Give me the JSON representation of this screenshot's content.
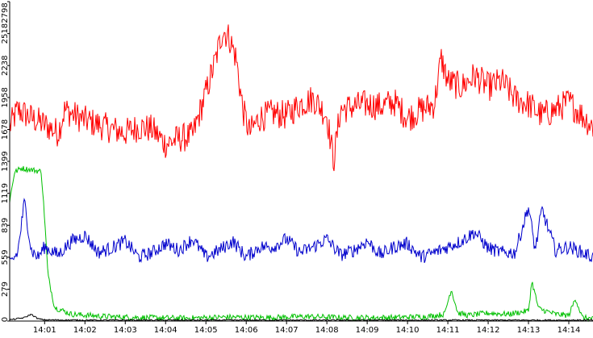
{
  "chart_data": {
    "type": "line",
    "title": "",
    "xlabel": "",
    "ylabel": "",
    "grid": false,
    "legend": "none",
    "ylim": [
      0,
      2798
    ],
    "xlim": [
      "14:00:08",
      "14:14:36"
    ],
    "y_ticks": [
      "0",
      "279",
      "559",
      "839",
      "1119",
      "1399",
      "1678",
      "1958",
      "2238",
      "2518",
      "2798"
    ],
    "x_ticks": [
      "14:01",
      "14:02",
      "14:03",
      "14:04",
      "14:05",
      "14:06",
      "14:07",
      "14:08",
      "14:09",
      "14:10",
      "14:11",
      "14:12",
      "14:13",
      "14:14"
    ],
    "x_tick_times": [
      "14:01:00",
      "14:02:00",
      "14:03:00",
      "14:04:00",
      "14:05:00",
      "14:06:00",
      "14:07:00",
      "14:08:00",
      "14:09:00",
      "14:10:00",
      "14:11:00",
      "14:12:00",
      "14:13:00",
      "14:14:00"
    ],
    "series": [
      {
        "color": "#ff0000",
        "x": [
          "14:00:08",
          "14:00:20",
          "14:00:40",
          "14:01:00",
          "14:01:20",
          "14:01:30",
          "14:01:45",
          "14:02:00",
          "14:02:20",
          "14:02:40",
          "14:03:00",
          "14:03:20",
          "14:03:40",
          "14:04:00",
          "14:04:20",
          "14:04:40",
          "14:05:00",
          "14:05:15",
          "14:05:25",
          "14:05:35",
          "14:05:45",
          "14:05:55",
          "14:06:05",
          "14:06:20",
          "14:06:40",
          "14:07:00",
          "14:07:20",
          "14:07:40",
          "14:08:00",
          "14:08:10",
          "14:08:20",
          "14:08:40",
          "14:09:00",
          "14:09:20",
          "14:09:40",
          "14:10:00",
          "14:10:20",
          "14:10:40",
          "14:10:50",
          "14:11:00",
          "14:11:20",
          "14:11:40",
          "14:12:00",
          "14:12:20",
          "14:12:40",
          "14:13:00",
          "14:13:20",
          "14:13:40",
          "14:14:00",
          "14:14:20",
          "14:14:36"
        ],
        "values": [
          1700,
          1850,
          1780,
          1720,
          1650,
          1850,
          1800,
          1760,
          1720,
          1680,
          1650,
          1700,
          1680,
          1550,
          1600,
          1620,
          2000,
          2300,
          2550,
          2480,
          2300,
          1850,
          1650,
          1780,
          1820,
          1800,
          1900,
          1950,
          1800,
          1400,
          1850,
          1880,
          1900,
          1880,
          1920,
          1780,
          1850,
          1900,
          2300,
          2100,
          2050,
          2150,
          2050,
          2100,
          1950,
          1900,
          1800,
          1850,
          1920,
          1800,
          1700
        ]
      },
      {
        "color": "#00c000",
        "x": [
          "14:00:08",
          "14:00:15",
          "14:00:25",
          "14:00:45",
          "14:00:55",
          "14:01:00",
          "14:01:05",
          "14:01:15",
          "14:01:40",
          "14:02:30",
          "14:03:30",
          "14:04:30",
          "14:05:30",
          "14:06:30",
          "14:07:30",
          "14:08:30",
          "14:09:30",
          "14:10:30",
          "14:10:55",
          "14:11:05",
          "14:11:15",
          "14:11:30",
          "14:12:00",
          "14:12:30",
          "14:13:00",
          "14:13:05",
          "14:13:15",
          "14:13:40",
          "14:14:00",
          "14:14:10",
          "14:14:20",
          "14:14:36"
        ],
        "values": [
          1050,
          1300,
          1340,
          1320,
          1310,
          900,
          400,
          120,
          60,
          40,
          30,
          25,
          35,
          30,
          40,
          30,
          30,
          40,
          60,
          280,
          70,
          50,
          70,
          60,
          90,
          350,
          110,
          60,
          50,
          200,
          30,
          20
        ]
      },
      {
        "color": "#0000cc",
        "x": [
          "14:00:08",
          "14:00:20",
          "14:00:30",
          "14:00:40",
          "14:00:50",
          "14:01:00",
          "14:01:20",
          "14:01:40",
          "14:02:00",
          "14:02:20",
          "14:02:40",
          "14:03:00",
          "14:03:20",
          "14:03:40",
          "14:04:00",
          "14:04:20",
          "14:04:40",
          "14:05:00",
          "14:05:20",
          "14:05:40",
          "14:06:00",
          "14:06:20",
          "14:06:40",
          "14:07:00",
          "14:07:20",
          "14:07:40",
          "14:08:00",
          "14:08:20",
          "14:08:40",
          "14:09:00",
          "14:09:20",
          "14:09:40",
          "14:10:00",
          "14:10:20",
          "14:10:40",
          "14:11:00",
          "14:11:20",
          "14:11:40",
          "14:12:00",
          "14:12:20",
          "14:12:40",
          "14:13:00",
          "14:13:10",
          "14:13:20",
          "14:13:40",
          "14:14:00",
          "14:14:20",
          "14:14:36"
        ],
        "values": [
          500,
          600,
          1050,
          620,
          560,
          650,
          580,
          700,
          750,
          600,
          640,
          700,
          560,
          600,
          680,
          620,
          720,
          560,
          620,
          700,
          560,
          650,
          650,
          720,
          600,
          650,
          720,
          580,
          620,
          700,
          580,
          650,
          680,
          560,
          600,
          650,
          700,
          780,
          640,
          600,
          600,
          1000,
          620,
          980,
          620,
          650,
          600,
          560
        ]
      },
      {
        "color": "#000000",
        "x": [
          "14:00:08",
          "14:00:30",
          "14:00:40",
          "14:00:50",
          "14:01:00",
          "14:02:00",
          "14:04:00",
          "14:06:00",
          "14:08:00",
          "14:10:00",
          "14:12:00",
          "14:14:00",
          "14:14:36"
        ],
        "values": [
          10,
          30,
          60,
          20,
          10,
          8,
          8,
          8,
          8,
          8,
          8,
          8,
          8
        ]
      }
    ]
  }
}
